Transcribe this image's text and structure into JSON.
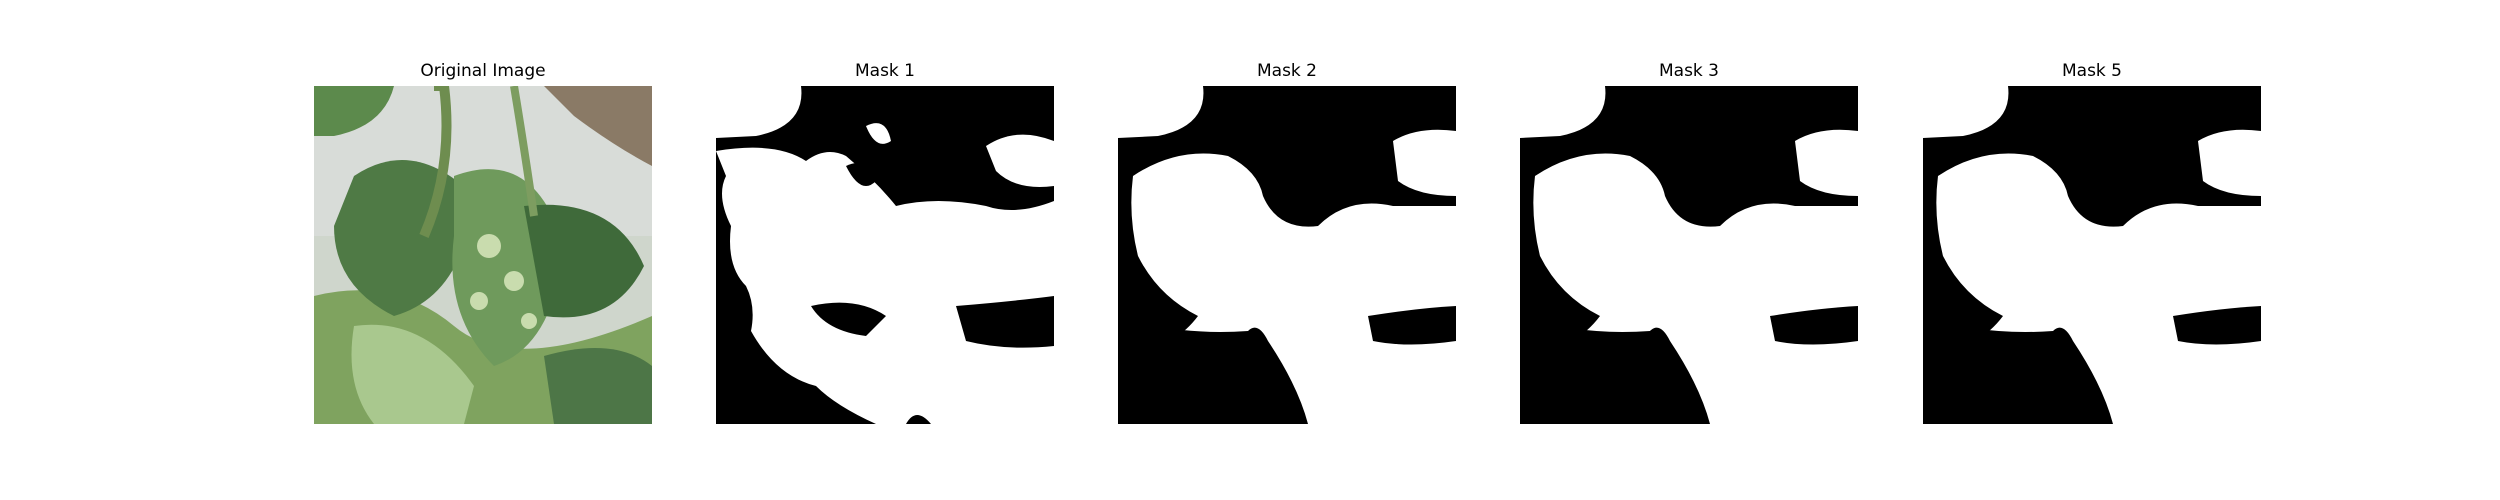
{
  "panels": [
    {
      "title": "Original Image",
      "kind": "photo"
    },
    {
      "title": "Mask 1",
      "kind": "mask"
    },
    {
      "title": "Mask 2",
      "kind": "mask"
    },
    {
      "title": "Mask 3",
      "kind": "mask"
    },
    {
      "title": "Mask 5",
      "kind": "mask"
    }
  ],
  "colors": {
    "mask_background": "#000000",
    "mask_foreground": "#ffffff",
    "leaf_dark": "#4f7a45",
    "leaf_mid": "#6f9a5c",
    "leaf_light": "#a9c88e",
    "wall": "#d8dcd8"
  }
}
